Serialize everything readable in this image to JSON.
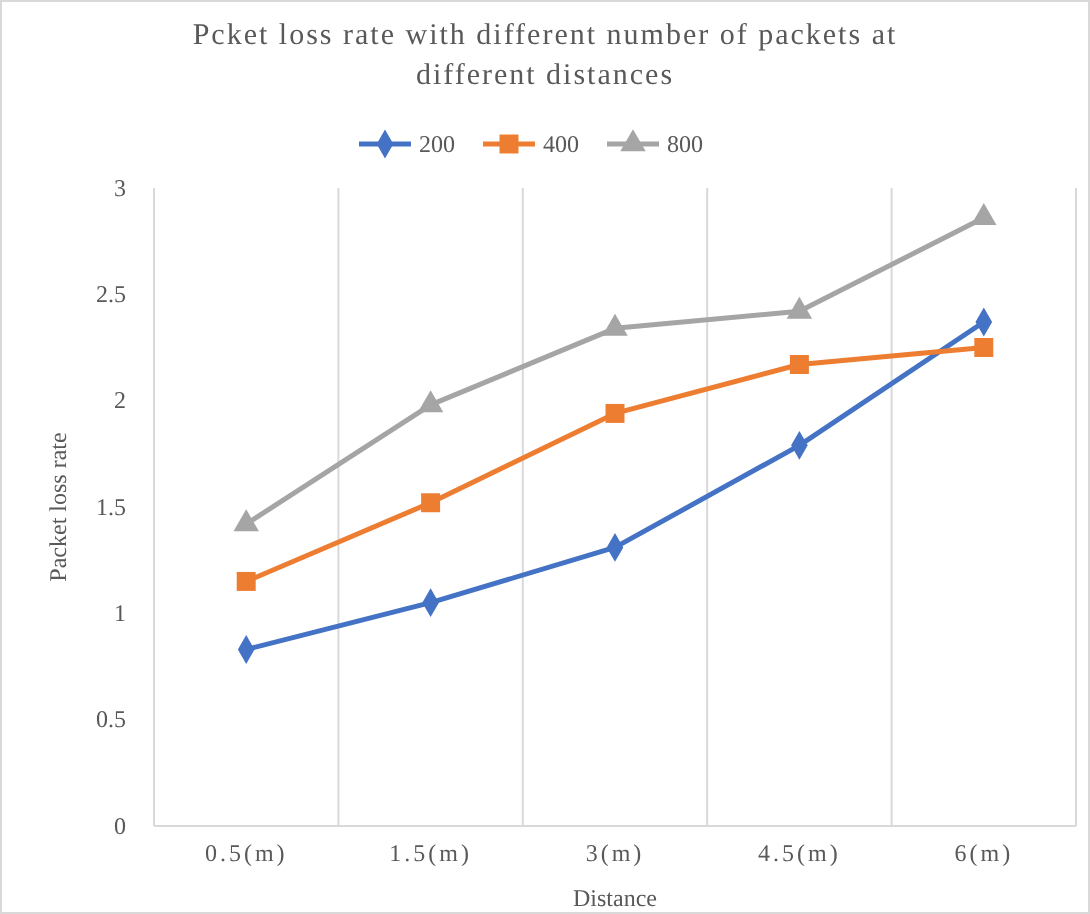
{
  "chart_data": {
    "type": "line",
    "title": "Pcket loss rate with different number of packets at different distances",
    "xlabel": "Distance",
    "ylabel": "Packet loss rate",
    "categories": [
      "0.5(m)",
      "1.5(m)",
      "3(m)",
      "4.5(m)",
      "6(m)"
    ],
    "series": [
      {
        "name": "200",
        "color": "#4472c4",
        "marker": "diamond",
        "values": [
          0.83,
          1.05,
          1.31,
          1.79,
          2.37
        ]
      },
      {
        "name": "400",
        "color": "#ed7d31",
        "marker": "square",
        "values": [
          1.15,
          1.52,
          1.94,
          2.17,
          2.25
        ]
      },
      {
        "name": "800",
        "color": "#a5a5a5",
        "marker": "triangle",
        "values": [
          1.42,
          1.98,
          2.34,
          2.42,
          2.86
        ]
      }
    ],
    "ylim": [
      0,
      3
    ],
    "yticks": [
      0,
      0.5,
      1,
      1.5,
      2,
      2.5,
      3
    ],
    "grid": "x",
    "legend": "top"
  }
}
